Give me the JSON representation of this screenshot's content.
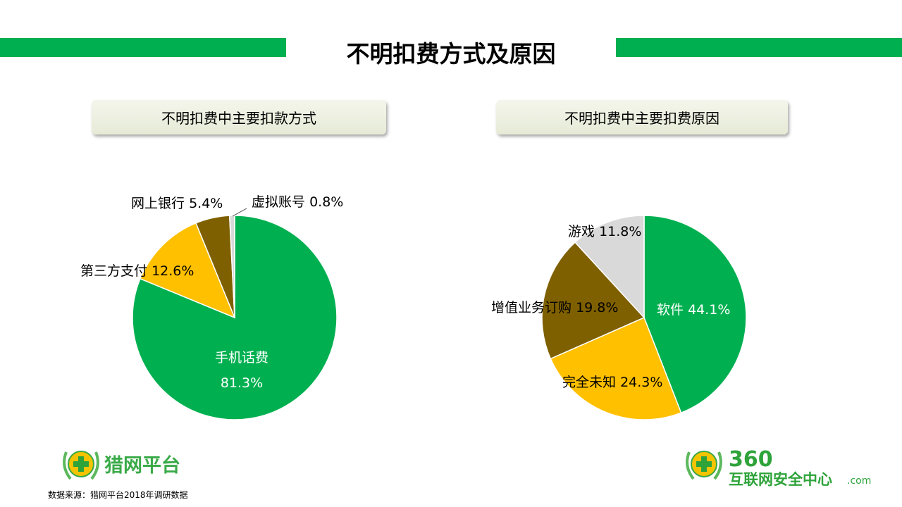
{
  "title": "不明扣费方式及原因",
  "colors": {
    "accent": "#00b050",
    "green": "#00b050",
    "yellow": "#ffc000",
    "brown": "#7f6000",
    "grey": "#d9d9d9"
  },
  "chart_data": [
    {
      "type": "pie",
      "title": "不明扣费中主要扣款方式",
      "start": "top, clockwise",
      "slices": [
        {
          "label": "手机话费",
          "value": 81.3,
          "text": "81.3%",
          "color": "#00b050"
        },
        {
          "label": "第三方支付",
          "value": 12.6,
          "text": "12.6%",
          "color": "#ffc000"
        },
        {
          "label": "网上银行",
          "value": 5.4,
          "text": "5.4%",
          "color": "#7f6000"
        },
        {
          "label": "虚拟账号",
          "value": 0.8,
          "text": "0.8%",
          "color": "#d9d9d9"
        }
      ]
    },
    {
      "type": "pie",
      "title": "不明扣费中主要扣费原因",
      "start": "top, clockwise",
      "slices": [
        {
          "label": "软件",
          "value": 44.1,
          "text": "44.1%",
          "color": "#00b050"
        },
        {
          "label": "完全未知",
          "value": 24.3,
          "text": "24.3%",
          "color": "#ffc000"
        },
        {
          "label": "增值业务订购",
          "value": 19.8,
          "text": "19.8%",
          "color": "#7f6000"
        },
        {
          "label": "游戏",
          "value": 11.8,
          "text": "11.8%",
          "color": "#d9d9d9"
        }
      ]
    }
  ],
  "footer": {
    "source": "数据来源：猎网平台2018年调研数据",
    "logo_left": "猎网平台",
    "logo_right_number": "360",
    "logo_right_text": "互联网安全中心",
    "watermark": ".com"
  }
}
